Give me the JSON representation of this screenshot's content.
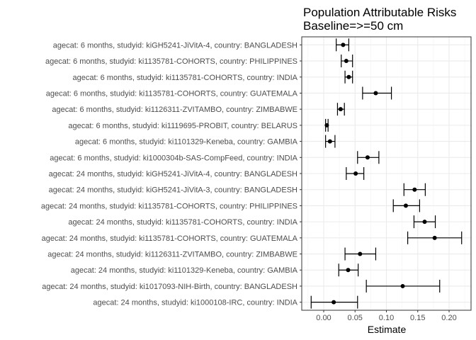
{
  "chart_data": {
    "type": "scatter",
    "title": "Population Attributable Risks",
    "subtitle": "Baseline=>=50 cm",
    "xlabel": "Estimate",
    "ylabel": "",
    "xlim": [
      -0.035,
      0.235
    ],
    "xticks": [
      0.0,
      0.05,
      0.1,
      0.15,
      0.2
    ],
    "xtick_labels": [
      "0.00",
      "0.05",
      "0.10",
      "0.15",
      "0.20"
    ],
    "grid": true,
    "legend": "none",
    "point_color": "#000000",
    "error_bars": true,
    "categories": [
      "agecat: 6 months, studyid: kiGH5241-JiVitA-4, country: BANGLADESH",
      "agecat: 6 months, studyid: ki1135781-COHORTS, country: PHILIPPINES",
      "agecat: 6 months, studyid: ki1135781-COHORTS, country: INDIA",
      "agecat: 6 months, studyid: ki1135781-COHORTS, country: GUATEMALA",
      "agecat: 6 months, studyid: ki1126311-ZVITAMBO, country: ZIMBABWE",
      "agecat: 6 months, studyid: ki1119695-PROBIT, country: BELARUS",
      "agecat: 6 months, studyid: ki1101329-Keneba, country: GAMBIA",
      "agecat: 6 months, studyid: ki1000304b-SAS-CompFeed, country: INDIA",
      "agecat: 24 months, studyid: kiGH5241-JiVitA-4, country: BANGLADESH",
      "agecat: 24 months, studyid: kiGH5241-JiVitA-3, country: BANGLADESH",
      "agecat: 24 months, studyid: ki1135781-COHORTS, country: PHILIPPINES",
      "agecat: 24 months, studyid: ki1135781-COHORTS, country: INDIA",
      "agecat: 24 months, studyid: ki1135781-COHORTS, country: GUATEMALA",
      "agecat: 24 months, studyid: ki1126311-ZVITAMBO, country: ZIMBABWE",
      "agecat: 24 months, studyid: ki1101329-Keneba, country: GAMBIA",
      "agecat: 24 months, studyid: ki1017093-NIH-Birth, country: BANGLADESH",
      "agecat: 24 months, studyid: ki1000108-IRC, country: INDIA"
    ],
    "estimates": [
      0.031,
      0.036,
      0.04,
      0.083,
      0.027,
      0.005,
      0.01,
      0.07,
      0.051,
      0.145,
      0.131,
      0.161,
      0.177,
      0.058,
      0.039,
      0.126,
      0.016
    ],
    "lower": [
      0.02,
      0.028,
      0.034,
      0.062,
      0.022,
      0.003,
      0.003,
      0.054,
      0.036,
      0.128,
      0.111,
      0.144,
      0.134,
      0.034,
      0.024,
      0.068,
      -0.02
    ],
    "upper": [
      0.04,
      0.046,
      0.046,
      0.108,
      0.033,
      0.007,
      0.018,
      0.088,
      0.064,
      0.162,
      0.153,
      0.178,
      0.22,
      0.083,
      0.055,
      0.185,
      0.054
    ]
  }
}
